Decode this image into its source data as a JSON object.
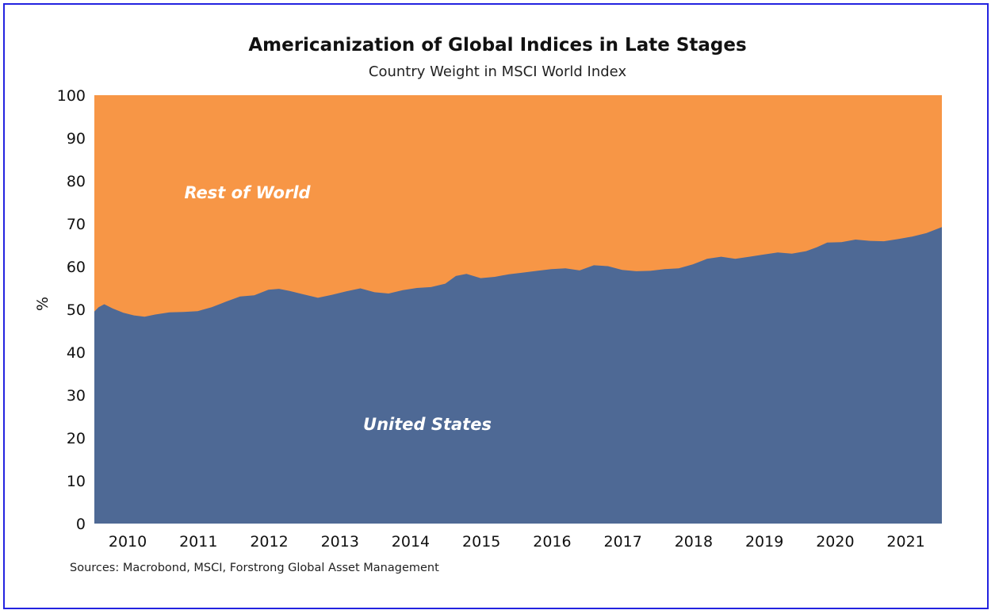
{
  "chart_data": {
    "type": "area",
    "title": "Americanization of Global Indices in Late Stages",
    "subtitle": "Country Weight in MSCI World Index",
    "xlabel": "",
    "ylabel": "%",
    "ylim": [
      0,
      100
    ],
    "xlim": [
      2009.54,
      2021.52
    ],
    "yticks": [
      "0",
      "10",
      "20",
      "30",
      "40",
      "50",
      "60",
      "70",
      "80",
      "90",
      "100"
    ],
    "xticks": [
      "2010",
      "2011",
      "2012",
      "2013",
      "2014",
      "2015",
      "2016",
      "2017",
      "2018",
      "2019",
      "2020",
      "2021"
    ],
    "grid": false,
    "series": [
      {
        "name": "United States",
        "color": "#4e6995",
        "x": [
          2009.54,
          2009.6,
          2009.68,
          2009.8,
          2009.95,
          2010.1,
          2010.25,
          2010.4,
          2010.6,
          2010.8,
          2011.0,
          2011.2,
          2011.4,
          2011.6,
          2011.8,
          2012.0,
          2012.15,
          2012.3,
          2012.5,
          2012.7,
          2012.9,
          2013.1,
          2013.3,
          2013.5,
          2013.7,
          2013.9,
          2014.1,
          2014.3,
          2014.5,
          2014.65,
          2014.8,
          2015.0,
          2015.2,
          2015.4,
          2015.6,
          2015.8,
          2016.0,
          2016.2,
          2016.4,
          2016.6,
          2016.8,
          2017.0,
          2017.2,
          2017.4,
          2017.6,
          2017.8,
          2018.0,
          2018.2,
          2018.4,
          2018.6,
          2018.8,
          2019.0,
          2019.2,
          2019.4,
          2019.6,
          2019.75,
          2019.9,
          2020.1,
          2020.3,
          2020.5,
          2020.7,
          2020.9,
          2021.1,
          2021.3,
          2021.52
        ],
        "values": [
          49.5,
          50.5,
          51.2,
          50.2,
          49.2,
          48.6,
          48.3,
          48.8,
          49.3,
          49.4,
          49.6,
          50.5,
          51.8,
          53.0,
          53.3,
          54.6,
          54.8,
          54.3,
          53.5,
          52.7,
          53.4,
          54.2,
          54.9,
          54.0,
          53.7,
          54.5,
          55.0,
          55.2,
          56.0,
          57.8,
          58.3,
          57.3,
          57.6,
          58.2,
          58.6,
          59.0,
          59.4,
          59.6,
          59.1,
          60.3,
          60.1,
          59.2,
          58.9,
          59.0,
          59.4,
          59.6,
          60.5,
          61.8,
          62.3,
          61.8,
          62.3,
          62.8,
          63.3,
          63.0,
          63.6,
          64.5,
          65.6,
          65.7,
          66.3,
          66.0,
          65.9,
          66.4,
          67.0,
          67.8,
          69.2
        ]
      },
      {
        "name": "Rest of World",
        "color": "#f79646",
        "note": "100 minus United States"
      }
    ],
    "annotations": [
      "Rest of World",
      "United States"
    ],
    "source": "Sources: Macrobond, MSCI, Forstrong Global Asset Management"
  }
}
